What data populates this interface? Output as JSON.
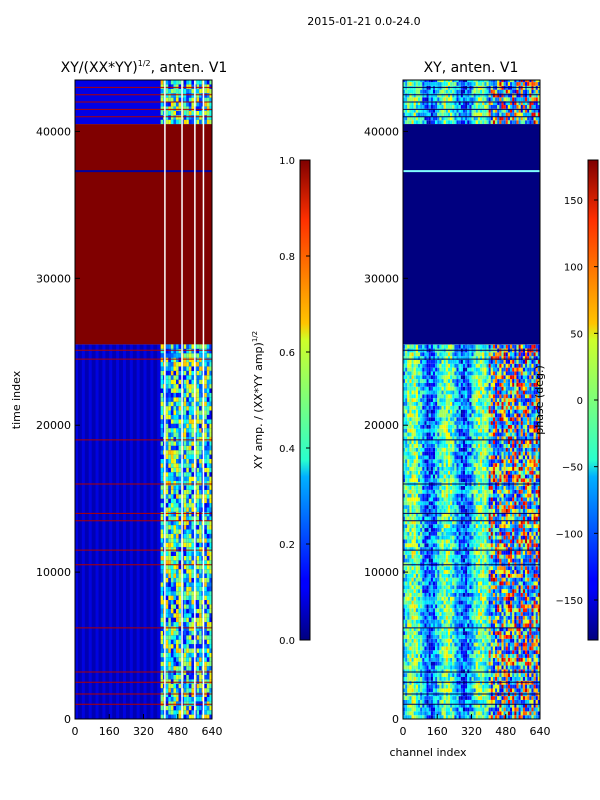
{
  "figure": {
    "suptitle": "2015-01-21 0.0-24.0"
  },
  "chart_data": [
    {
      "type": "heatmap",
      "title": "XY/(XX*YY)^1/2, anten. V1",
      "title_parts": {
        "main": "XY/(XX*YY)",
        "sup": "1/2",
        "tail": ", anten. V1"
      },
      "xlabel": "",
      "ylabel": "time index",
      "xlim": [
        0,
        640
      ],
      "ylim": [
        0,
        43500
      ],
      "xticks": [
        0,
        160,
        320,
        480,
        640
      ],
      "yticks": [
        0,
        10000,
        20000,
        30000,
        40000
      ],
      "colormap": "jet",
      "colorbar": {
        "label": "XY amp. / (XX*YY amp)^1/2",
        "label_parts": {
          "main": "XY amp. / (XX*YY amp)",
          "sup": "1/2"
        },
        "range": [
          0.0,
          1.0
        ],
        "ticks": [
          0.0,
          0.2,
          0.4,
          0.6,
          0.8,
          1.0
        ],
        "tick_labels": [
          "0.0",
          "0.2",
          "0.4",
          "0.6",
          "0.8",
          "1.0"
        ]
      },
      "regions": [
        {
          "y": [
            0,
            25500
          ],
          "level": 0.05,
          "desc": "low amplitude"
        },
        {
          "y": [
            25500,
            40500
          ],
          "level": 1.0,
          "desc": "saturated"
        },
        {
          "y": [
            40500,
            43500
          ],
          "level": 0.1,
          "desc": "low amplitude"
        }
      ],
      "active_x_range": [
        400,
        640
      ]
    },
    {
      "type": "heatmap",
      "title": "XY, anten. V1",
      "xlabel": "channel index",
      "ylabel": "",
      "xlim": [
        0,
        640
      ],
      "ylim": [
        0,
        43500
      ],
      "xticks": [
        0,
        160,
        320,
        480,
        640
      ],
      "yticks": [
        0,
        10000,
        20000,
        30000,
        40000
      ],
      "colormap": "jet",
      "colorbar": {
        "label": "phase (deg.)",
        "range": [
          -180,
          180
        ],
        "ticks": [
          -150,
          -100,
          -50,
          0,
          50,
          100,
          150
        ],
        "tick_labels": [
          "−150",
          "−100",
          "−50",
          "0",
          "50",
          "100",
          "150"
        ]
      },
      "regions": [
        {
          "y": [
            0,
            25500
          ],
          "level": 0.5,
          "desc": "mixed phase"
        },
        {
          "y": [
            25500,
            40500
          ],
          "level": 0.0,
          "desc": "constant phase"
        },
        {
          "y": [
            40500,
            43500
          ],
          "level": 0.4,
          "desc": "mixed phase"
        }
      ]
    }
  ]
}
